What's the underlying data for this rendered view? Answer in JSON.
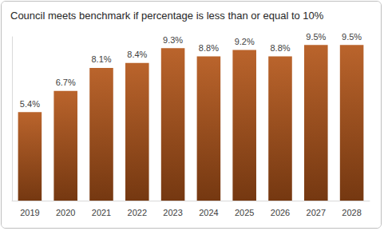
{
  "chart_data": {
    "type": "bar",
    "title": "Council meets benchmark if percentage is less than or equal to 10%",
    "categories": [
      "2019",
      "2020",
      "2021",
      "2022",
      "2023",
      "2024",
      "2025",
      "2026",
      "2027",
      "2028"
    ],
    "values": [
      5.4,
      6.7,
      8.1,
      8.4,
      9.3,
      8.8,
      9.2,
      8.8,
      9.5,
      9.5
    ],
    "value_labels": [
      "5.4%",
      "6.7%",
      "8.1%",
      "8.4%",
      "9.3%",
      "8.8%",
      "9.2%",
      "8.8%",
      "9.5%",
      "9.5%"
    ],
    "color": "#b4561a",
    "ylim": [
      0,
      10
    ],
    "grid": false,
    "data_labels": true,
    "tick_labels": "x"
  }
}
